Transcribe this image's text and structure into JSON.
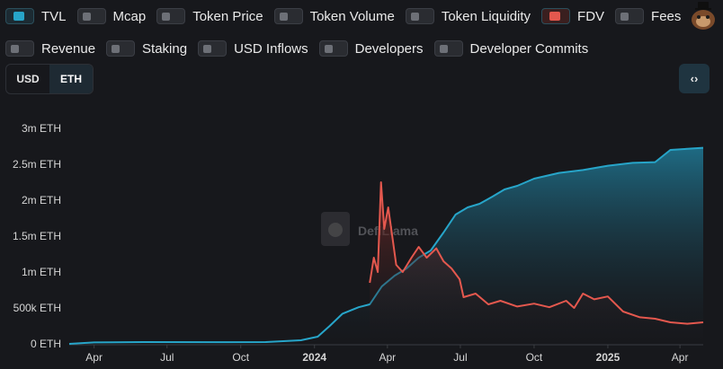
{
  "toggles_row1": [
    {
      "label": "TVL",
      "on": true,
      "color": "#27a5c9"
    },
    {
      "label": "Mcap",
      "on": false
    },
    {
      "label": "Token Price",
      "on": false
    },
    {
      "label": "Token Volume",
      "on": false
    },
    {
      "label": "Token Liquidity",
      "on": false
    },
    {
      "label": "FDV",
      "on": true,
      "color": "#e4584e"
    },
    {
      "label": "Fees",
      "on": false
    }
  ],
  "toggles_row2": [
    {
      "label": "Revenue",
      "on": false
    },
    {
      "label": "Staking",
      "on": false
    },
    {
      "label": "USD Inflows",
      "on": false
    },
    {
      "label": "Developers",
      "on": false
    },
    {
      "label": "Developer Commits",
      "on": false
    }
  ],
  "denomination": {
    "options": [
      "USD",
      "ETH"
    ],
    "selected": "ETH"
  },
  "embed_label": "‹›",
  "watermark": "DefiLlama",
  "chart_data": {
    "type": "area",
    "ylim": [
      0,
      3000000
    ],
    "y_ticks": [
      {
        "v": 0,
        "label": "0 ETH"
      },
      {
        "v": 500000,
        "label": "500k ETH"
      },
      {
        "v": 1000000,
        "label": "1m ETH"
      },
      {
        "v": 1500000,
        "label": "1.5m ETH"
      },
      {
        "v": 2000000,
        "label": "2m ETH"
      },
      {
        "v": 2500000,
        "label": "2.5m ETH"
      },
      {
        "v": 3000000,
        "label": "3m ETH"
      }
    ],
    "x_range": [
      "2023-03-01",
      "2025-04-30"
    ],
    "x_ticks": [
      {
        "date": "2023-04-01",
        "label": "Apr",
        "bold": false
      },
      {
        "date": "2023-07-01",
        "label": "Jul",
        "bold": false
      },
      {
        "date": "2023-10-01",
        "label": "Oct",
        "bold": false
      },
      {
        "date": "2024-01-01",
        "label": "2024",
        "bold": true
      },
      {
        "date": "2024-04-01",
        "label": "Apr",
        "bold": false
      },
      {
        "date": "2024-07-01",
        "label": "Jul",
        "bold": false
      },
      {
        "date": "2024-10-01",
        "label": "Oct",
        "bold": false
      },
      {
        "date": "2025-01-01",
        "label": "2025",
        "bold": true
      },
      {
        "date": "2025-04-01",
        "label": "Apr",
        "bold": false
      }
    ],
    "series": [
      {
        "name": "TVL",
        "color": "#27a5c9",
        "points": [
          [
            "2023-03-01",
            0
          ],
          [
            "2023-04-01",
            20000
          ],
          [
            "2023-06-01",
            25000
          ],
          [
            "2023-09-01",
            24000
          ],
          [
            "2023-11-01",
            25000
          ],
          [
            "2023-12-15",
            50000
          ],
          [
            "2024-01-05",
            100000
          ],
          [
            "2024-01-20",
            250000
          ],
          [
            "2024-02-05",
            420000
          ],
          [
            "2024-02-25",
            510000
          ],
          [
            "2024-03-10",
            550000
          ],
          [
            "2024-03-25",
            800000
          ],
          [
            "2024-04-10",
            950000
          ],
          [
            "2024-04-25",
            1050000
          ],
          [
            "2024-05-10",
            1200000
          ],
          [
            "2024-05-25",
            1300000
          ],
          [
            "2024-06-10",
            1550000
          ],
          [
            "2024-06-25",
            1800000
          ],
          [
            "2024-07-10",
            1900000
          ],
          [
            "2024-07-25",
            1950000
          ],
          [
            "2024-08-10",
            2050000
          ],
          [
            "2024-08-25",
            2150000
          ],
          [
            "2024-09-10",
            2200000
          ],
          [
            "2024-10-01",
            2300000
          ],
          [
            "2024-11-01",
            2380000
          ],
          [
            "2024-12-01",
            2420000
          ],
          [
            "2025-01-01",
            2480000
          ],
          [
            "2025-02-01",
            2520000
          ],
          [
            "2025-03-01",
            2530000
          ],
          [
            "2025-03-20",
            2700000
          ],
          [
            "2025-04-30",
            2730000
          ]
        ]
      },
      {
        "name": "FDV",
        "color": "#e4584e",
        "points": [
          [
            "2024-03-10",
            850000
          ],
          [
            "2024-03-15",
            1200000
          ],
          [
            "2024-03-20",
            1000000
          ],
          [
            "2024-03-24",
            2250000
          ],
          [
            "2024-03-28",
            1600000
          ],
          [
            "2024-04-02",
            1900000
          ],
          [
            "2024-04-07",
            1500000
          ],
          [
            "2024-04-12",
            1100000
          ],
          [
            "2024-04-20",
            1000000
          ],
          [
            "2024-05-01",
            1200000
          ],
          [
            "2024-05-10",
            1350000
          ],
          [
            "2024-05-20",
            1200000
          ],
          [
            "2024-06-01",
            1330000
          ],
          [
            "2024-06-10",
            1150000
          ],
          [
            "2024-06-20",
            1050000
          ],
          [
            "2024-06-30",
            900000
          ],
          [
            "2024-07-05",
            650000
          ],
          [
            "2024-07-20",
            700000
          ],
          [
            "2024-08-05",
            550000
          ],
          [
            "2024-08-20",
            600000
          ],
          [
            "2024-09-10",
            520000
          ],
          [
            "2024-10-01",
            560000
          ],
          [
            "2024-10-20",
            510000
          ],
          [
            "2024-11-10",
            600000
          ],
          [
            "2024-11-20",
            500000
          ],
          [
            "2024-12-01",
            700000
          ],
          [
            "2024-12-15",
            620000
          ],
          [
            "2025-01-01",
            660000
          ],
          [
            "2025-01-20",
            450000
          ],
          [
            "2025-02-10",
            370000
          ],
          [
            "2025-03-01",
            350000
          ],
          [
            "2025-03-20",
            300000
          ],
          [
            "2025-04-10",
            280000
          ],
          [
            "2025-04-30",
            300000
          ]
        ]
      }
    ]
  }
}
